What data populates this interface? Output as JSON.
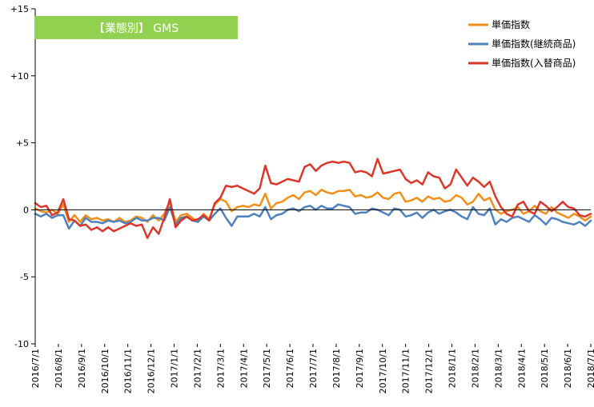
{
  "chart_data": {
    "type": "line",
    "title": "【業態別】 GMS",
    "xlabel": "",
    "ylabel": "",
    "ylim": [
      -10,
      15
    ],
    "yticks": [
      "+15",
      "+10",
      "+5",
      "0",
      "-5",
      "-10"
    ],
    "ytick_values": [
      15,
      10,
      5,
      0,
      -5,
      -10
    ],
    "grid": false,
    "legend_placement": "top-right",
    "x_tick_labels": [
      "2016/7/1",
      "2016/8/1",
      "2016/9/1",
      "2016/10/1",
      "2016/11/1",
      "2016/12/1",
      "2017/1/1",
      "2017/2/1",
      "2017/3/1",
      "2017/4/1",
      "2017/5/1",
      "2017/6/1",
      "2017/7/1",
      "2017/8/1",
      "2017/9/1",
      "2017/10/1",
      "2017/11/1",
      "2017/12/1",
      "2018/1/1",
      "2018/2/1",
      "2018/3/1",
      "2018/4/1",
      "2018/5/1",
      "2018/6/1",
      "2018/7/1"
    ],
    "colors": {
      "title_bg": "#92d050",
      "axis": "#000000"
    },
    "series": [
      {
        "name": "単価指数",
        "color": "#f0901a",
        "values": [
          0.1,
          -0.1,
          -0.2,
          0.0,
          -0.3,
          0.4,
          -0.9,
          -0.4,
          -0.9,
          -0.4,
          -0.7,
          -0.6,
          -0.8,
          -0.7,
          -0.9,
          -0.6,
          -0.9,
          -0.8,
          -0.5,
          -0.6,
          -0.9,
          -0.4,
          -0.8,
          -0.3,
          0.6,
          -0.9,
          -0.4,
          -0.3,
          -0.6,
          -0.9,
          -0.3,
          -0.7,
          0.4,
          0.8,
          0.6,
          -0.1,
          0.2,
          0.3,
          0.2,
          0.4,
          0.3,
          1.2,
          0.1,
          0.5,
          0.6,
          0.9,
          1.1,
          0.8,
          1.3,
          1.4,
          1.1,
          1.5,
          1.3,
          1.2,
          1.4,
          1.4,
          1.5,
          1.0,
          1.1,
          0.9,
          1.0,
          1.3,
          0.9,
          0.8,
          1.2,
          1.3,
          0.6,
          0.7,
          0.9,
          0.6,
          1.0,
          0.8,
          0.9,
          0.6,
          0.7,
          1.1,
          0.9,
          0.4,
          0.6,
          1.2,
          0.7,
          0.9,
          0.0,
          -0.3,
          -0.1,
          0.0,
          0.2,
          -0.3,
          -0.1,
          0.3,
          -0.1,
          -0.3,
          0.2,
          -0.2,
          -0.4,
          -0.6,
          -0.3,
          -0.5,
          -0.8,
          -0.5
        ]
      },
      {
        "name": "単価指数(継続商品)",
        "color": "#4f81bd",
        "values": [
          -0.3,
          -0.5,
          -0.3,
          -0.6,
          -0.4,
          -0.4,
          -1.4,
          -0.8,
          -1.2,
          -0.6,
          -0.9,
          -0.9,
          -1.0,
          -0.8,
          -0.9,
          -0.8,
          -1.0,
          -0.9,
          -0.6,
          -0.8,
          -0.8,
          -0.6,
          -0.6,
          -0.8,
          0.2,
          -1.1,
          -0.6,
          -0.5,
          -0.8,
          -0.9,
          -0.5,
          -0.8,
          -0.3,
          0.1,
          -0.6,
          -1.2,
          -0.5,
          -0.5,
          -0.5,
          -0.3,
          -0.5,
          0.2,
          -0.7,
          -0.4,
          -0.3,
          0.0,
          0.1,
          -0.1,
          0.2,
          0.3,
          0.0,
          0.3,
          0.1,
          0.1,
          0.4,
          0.3,
          0.2,
          -0.3,
          -0.2,
          -0.2,
          0.1,
          0.0,
          -0.2,
          -0.4,
          0.1,
          0.0,
          -0.5,
          -0.4,
          -0.2,
          -0.6,
          -0.2,
          0.0,
          -0.3,
          -0.1,
          0.0,
          -0.2,
          -0.5,
          -0.7,
          0.2,
          -0.3,
          -0.4,
          0.1,
          -1.1,
          -0.7,
          -0.9,
          -0.6,
          -0.5,
          -0.7,
          -0.9,
          -0.4,
          -0.7,
          -1.1,
          -0.6,
          -0.7,
          -0.9,
          -1.0,
          -1.1,
          -0.9,
          -1.2,
          -0.8
        ]
      },
      {
        "name": "単価指数(入替商品)",
        "color": "#d9372a",
        "values": [
          0.5,
          0.2,
          0.3,
          -0.4,
          -0.2,
          0.8,
          -0.7,
          -0.8,
          -1.2,
          -1.1,
          -1.5,
          -1.3,
          -1.6,
          -1.3,
          -1.6,
          -1.4,
          -1.2,
          -1.0,
          -1.2,
          -1.1,
          -2.1,
          -1.3,
          -1.8,
          -0.6,
          0.8,
          -1.3,
          -0.8,
          -0.5,
          -0.8,
          -0.7,
          -0.4,
          -0.8,
          0.5,
          0.9,
          1.8,
          1.7,
          1.8,
          1.6,
          1.4,
          1.2,
          1.6,
          3.3,
          2.0,
          1.9,
          2.1,
          2.3,
          2.2,
          2.1,
          3.2,
          3.4,
          2.9,
          3.3,
          3.5,
          3.6,
          3.5,
          3.6,
          3.5,
          2.8,
          2.9,
          2.8,
          2.5,
          3.8,
          2.7,
          2.8,
          2.9,
          3.0,
          2.3,
          2.0,
          2.2,
          1.9,
          2.8,
          2.5,
          2.4,
          1.6,
          1.9,
          3.0,
          2.4,
          1.8,
          2.4,
          2.1,
          1.7,
          2.1,
          1.0,
          0.2,
          -0.3,
          -0.5,
          0.4,
          0.6,
          -0.1,
          -0.3,
          0.6,
          0.3,
          -0.1,
          0.2,
          0.6,
          0.2,
          0.1,
          -0.4,
          -0.5,
          -0.3
        ]
      }
    ]
  }
}
